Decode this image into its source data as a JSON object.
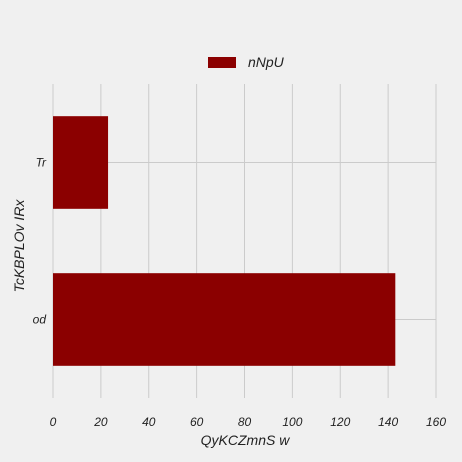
{
  "chart_data": {
    "type": "bar",
    "orientation": "horizontal",
    "categories": [
      "Tr",
      "od"
    ],
    "series": [
      {
        "name": "nNpU",
        "values": [
          23,
          143
        ],
        "color": "#8b0000"
      }
    ],
    "xlabel": "QyKCZmnS w",
    "ylabel": "TcKBPLOv IRx",
    "xlim": [
      0,
      160
    ],
    "xticks": [
      0,
      20,
      40,
      60,
      80,
      100,
      120,
      140,
      160
    ],
    "x_tick_labels": [
      "0",
      "20",
      "40",
      "60",
      "80",
      "100",
      "120",
      "140",
      "160"
    ],
    "grid": true,
    "legend": "top-center",
    "background": "#f0f0f0"
  }
}
